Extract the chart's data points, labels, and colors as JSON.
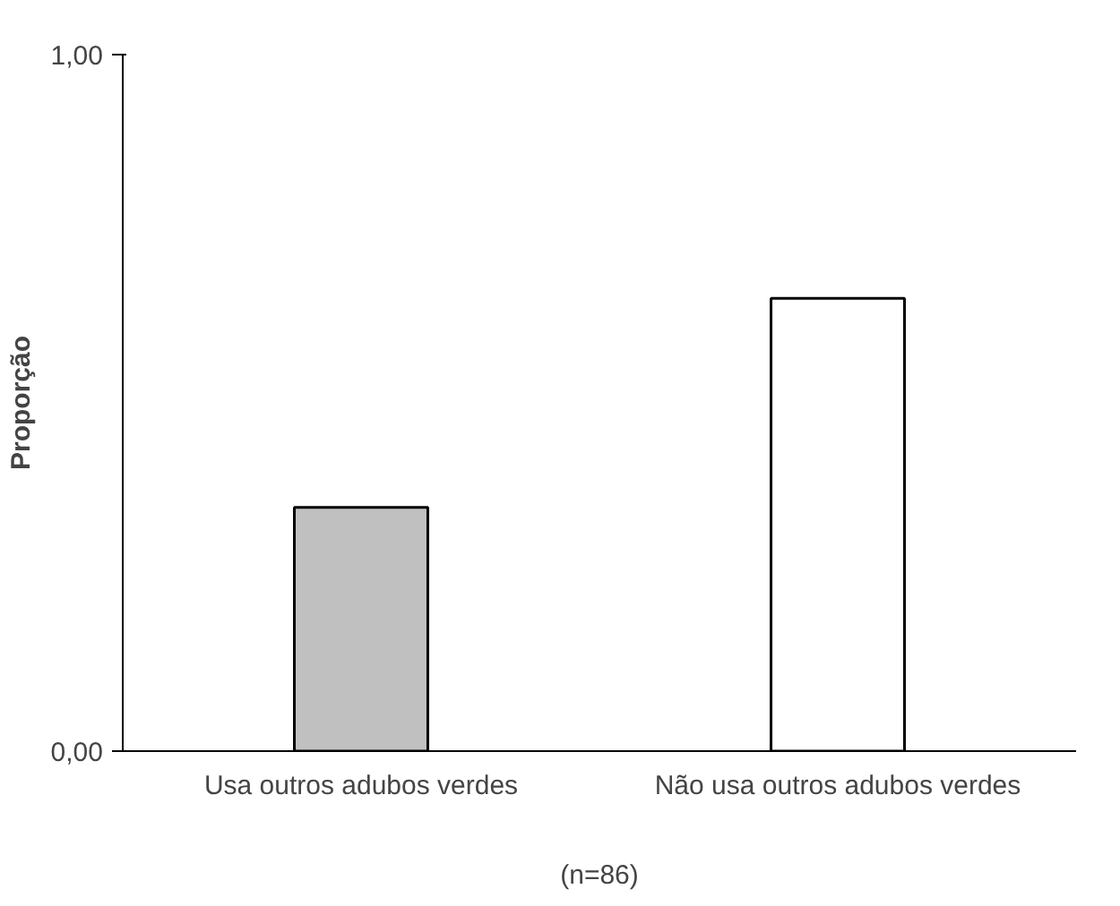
{
  "chart_data": {
    "type": "bar",
    "ylabel": "Proporção",
    "categories": [
      "Usa outros adubos verdes",
      "Não usa outros adubos verdes"
    ],
    "values": [
      0.35,
      0.65
    ],
    "colors": [
      "#c0c0c0",
      "#ffffff"
    ],
    "ylim": [
      0,
      1
    ],
    "yticks": [
      {
        "value": 0,
        "label": "0,00"
      },
      {
        "value": 1,
        "label": "1,00"
      }
    ],
    "grid": false,
    "annotations": [
      "(n=86)"
    ]
  }
}
